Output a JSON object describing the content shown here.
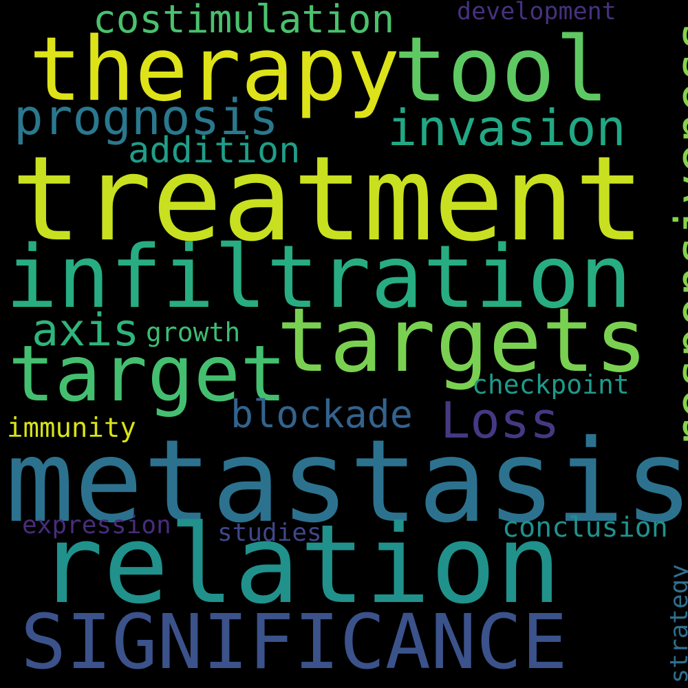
{
  "background": "#000000",
  "words": [
    {
      "text": "treatment",
      "color": "#c8e020"
    },
    {
      "text": "metastasis",
      "color": "#2c728e"
    },
    {
      "text": "relation",
      "color": "#21918c"
    },
    {
      "text": "infiltration",
      "color": "#27ad81"
    },
    {
      "text": "therapy",
      "color": "#dde318"
    },
    {
      "text": "targets",
      "color": "#7ad151"
    },
    {
      "text": "SIGNIFICANCE",
      "color": "#3b528b"
    },
    {
      "text": "tool",
      "color": "#5ec962"
    },
    {
      "text": "target",
      "color": "#44bf70"
    },
    {
      "text": "responsiveness",
      "color": "#84d44b"
    },
    {
      "text": "prognosis",
      "color": "#2a788e"
    },
    {
      "text": "invasion",
      "color": "#22a884"
    },
    {
      "text": "costimulation",
      "color": "#4ac16d"
    },
    {
      "text": "Loss",
      "color": "#443983"
    },
    {
      "text": "axis",
      "color": "#2fb47c"
    },
    {
      "text": "addition",
      "color": "#1f9e89"
    },
    {
      "text": "blockade",
      "color": "#33638d"
    },
    {
      "text": "conclusion",
      "color": "#21918c"
    },
    {
      "text": "checkpoint",
      "color": "#1f9a8a"
    },
    {
      "text": "immunity",
      "color": "#d8e219"
    },
    {
      "text": "growth",
      "color": "#3dbc74"
    },
    {
      "text": "studies",
      "color": "#3f4788"
    },
    {
      "text": "expression",
      "color": "#472d7b"
    },
    {
      "text": "development",
      "color": "#46327e"
    },
    {
      "text": "strategy",
      "color": "#2e6f8e"
    }
  ]
}
